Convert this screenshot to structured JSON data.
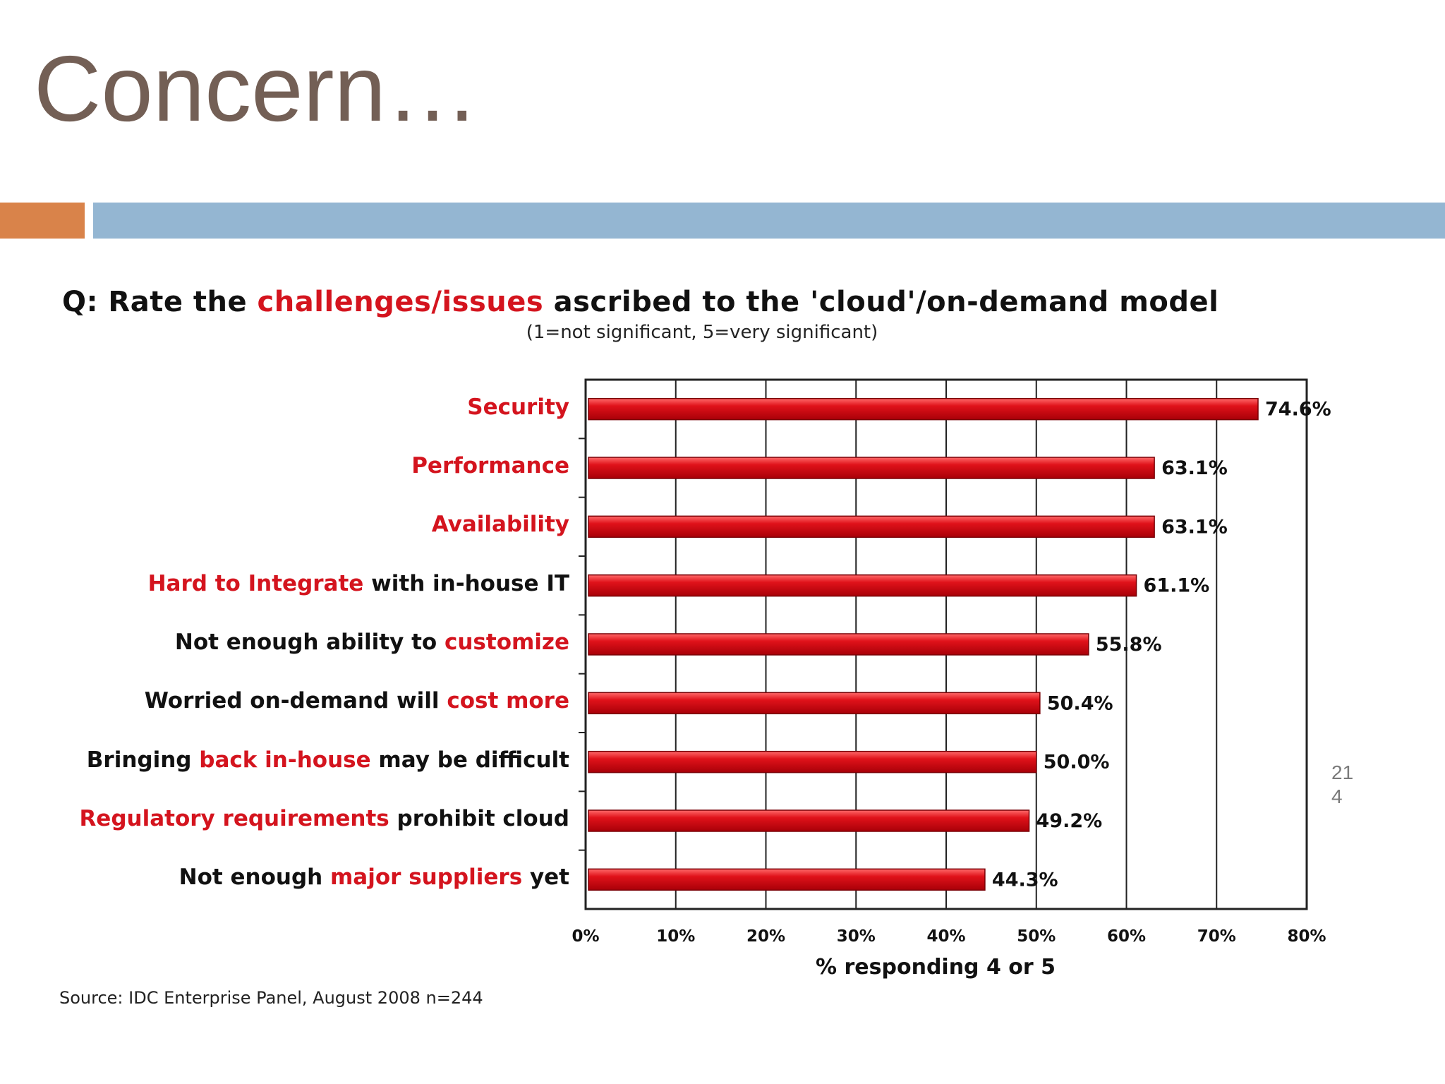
{
  "slide": {
    "title": "Concern…",
    "page_number_line1": "21",
    "page_number_line2": "4"
  },
  "colors": {
    "bar": "#e0121a",
    "highlight": "#d4141e",
    "title": "#735f55",
    "accent_orange": "#d9834a",
    "accent_blue": "#94b6d2"
  },
  "chart_data": {
    "type": "bar",
    "orientation": "horizontal",
    "title_parts": [
      "Q: Rate the ",
      "challenges/issues",
      " ascribed to the 'cloud'/on-demand model"
    ],
    "subtitle": "(1=not significant, 5=very significant)",
    "xlabel": "% responding 4 or 5",
    "xlim": [
      0,
      80
    ],
    "xticks": [
      "0%",
      "10%",
      "20%",
      "30%",
      "40%",
      "50%",
      "60%",
      "70%",
      "80%"
    ],
    "grid": true,
    "categories": [
      [
        "",
        "Security",
        ""
      ],
      [
        "",
        "Performance",
        ""
      ],
      [
        "",
        "Availability",
        ""
      ],
      [
        "",
        "Hard to Integrate",
        " with in-house IT"
      ],
      [
        "Not enough ability to ",
        "customize",
        ""
      ],
      [
        "Worried on-demand will ",
        "cost more",
        ""
      ],
      [
        "Bringing ",
        "back in-house",
        " may be difficult"
      ],
      [
        "",
        "Regulatory requirements",
        " prohibit cloud"
      ],
      [
        "Not enough ",
        "major suppliers",
        " yet"
      ]
    ],
    "values": [
      74.6,
      63.1,
      63.1,
      61.1,
      55.8,
      50.4,
      50.0,
      49.2,
      44.3
    ],
    "value_labels": [
      "74.6%",
      "63.1%",
      "63.1%",
      "61.1%",
      "55.8%",
      "50.4%",
      "50.0%",
      "49.2%",
      "44.3%"
    ],
    "source": "Source: IDC Enterprise Panel, August 2008  n=244"
  }
}
